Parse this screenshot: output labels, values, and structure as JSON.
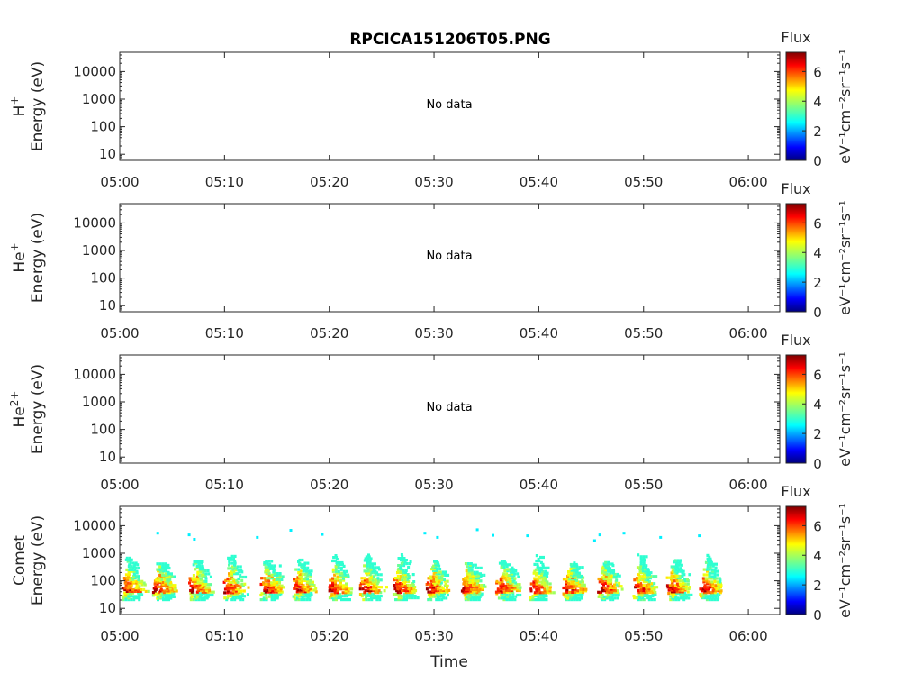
{
  "chart_data": {
    "type": "heatmap",
    "title": "RPCICA151206T05.PNG",
    "xlabel": "Time",
    "x_tick_labels": [
      "05:00",
      "05:10",
      "05:20",
      "05:30",
      "05:40",
      "05:50",
      "06:00"
    ],
    "xlim": [
      "05:00",
      "06:03"
    ],
    "y_scale": "log",
    "ylim": [
      6,
      50000
    ],
    "y_tick_labels": [
      "10",
      "100",
      "1000",
      "10000"
    ],
    "y_tick_values": [
      10,
      100,
      1000,
      10000
    ],
    "colorbar": {
      "title": "Flux",
      "label": "eV⁻¹cm⁻²sr⁻¹s⁻¹",
      "tick_labels": [
        "0",
        "2",
        "4",
        "6"
      ],
      "range": [
        0,
        7.3
      ],
      "colormap": "jet"
    },
    "panels": [
      {
        "ylabel_species_base": "H",
        "ylabel_species_sup": "+",
        "ylabel_units": "Energy (eV)",
        "message": "No data",
        "has_data": false
      },
      {
        "ylabel_species_base": "He",
        "ylabel_species_sup": "+",
        "ylabel_units": "Energy (eV)",
        "message": "No data",
        "has_data": false
      },
      {
        "ylabel_species_base": "He",
        "ylabel_species_sup": "2+",
        "ylabel_units": "Energy (eV)",
        "message": "No data",
        "has_data": false
      },
      {
        "ylabel_species_base": "Comet",
        "ylabel_species_sup": "",
        "ylabel_units": "Energy (eV)",
        "message": "",
        "has_data": true,
        "bursts_minutes": [
          0.8,
          3.7,
          7.2,
          10.5,
          14.0,
          17.0,
          20.5,
          23.5,
          26.7,
          29.8,
          33.2,
          36.5,
          39.7,
          42.9,
          46.2,
          49.6,
          52.8,
          55.9
        ],
        "burst_energy_range_eV": [
          20,
          900
        ],
        "peak_energy_eV": 45,
        "scatter_points": [
          {
            "t": 3.5,
            "e": 6000
          },
          {
            "t": 6.5,
            "e": 5200
          },
          {
            "t": 7.0,
            "e": 3600
          },
          {
            "t": 13.0,
            "e": 4200
          },
          {
            "t": 16.2,
            "e": 7600
          },
          {
            "t": 19.2,
            "e": 5400
          },
          {
            "t": 29.0,
            "e": 6000
          },
          {
            "t": 30.2,
            "e": 4200
          },
          {
            "t": 34.0,
            "e": 8000
          },
          {
            "t": 35.5,
            "e": 5000
          },
          {
            "t": 38.8,
            "e": 4800
          },
          {
            "t": 45.2,
            "e": 3200
          },
          {
            "t": 45.7,
            "e": 5200
          },
          {
            "t": 48.0,
            "e": 6000
          },
          {
            "t": 51.5,
            "e": 4200
          },
          {
            "t": 55.2,
            "e": 4800
          }
        ]
      }
    ]
  }
}
